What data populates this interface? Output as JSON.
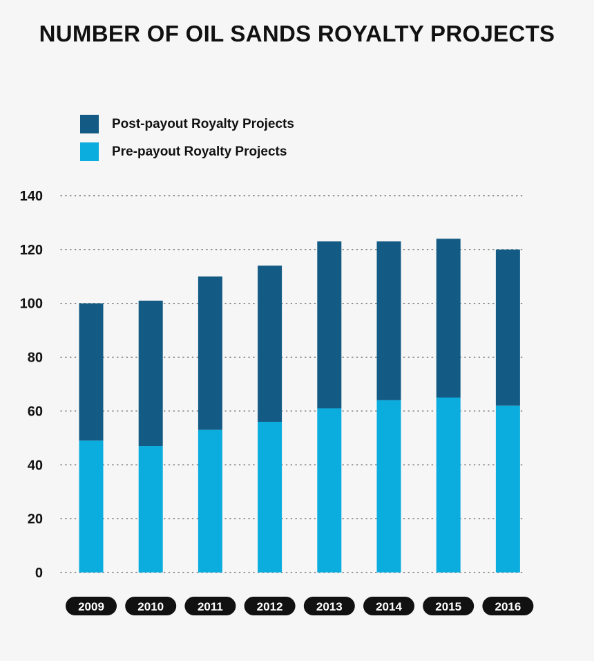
{
  "chart_data": {
    "type": "bar",
    "stacked": true,
    "title": "NUMBER OF OIL SANDS ROYALTY PROJECTS",
    "xlabel": "",
    "ylabel": "",
    "categories": [
      "2009",
      "2010",
      "2011",
      "2012",
      "2013",
      "2014",
      "2015",
      "2016"
    ],
    "series": [
      {
        "name": "Pre-payout Royalty Projects",
        "color": "#0badde",
        "values": [
          49,
          47,
          53,
          56,
          61,
          64,
          65,
          62
        ]
      },
      {
        "name": "Post-payout Royalty Projects",
        "color": "#135b84",
        "values": [
          51,
          54,
          57,
          58,
          62,
          59,
          59,
          58
        ]
      }
    ],
    "ylim": [
      0,
      140
    ],
    "yticks": [
      0,
      20,
      40,
      60,
      80,
      100,
      120,
      140
    ],
    "grid": true,
    "legend_position": "top-left",
    "category_badge_color": "#111111"
  }
}
